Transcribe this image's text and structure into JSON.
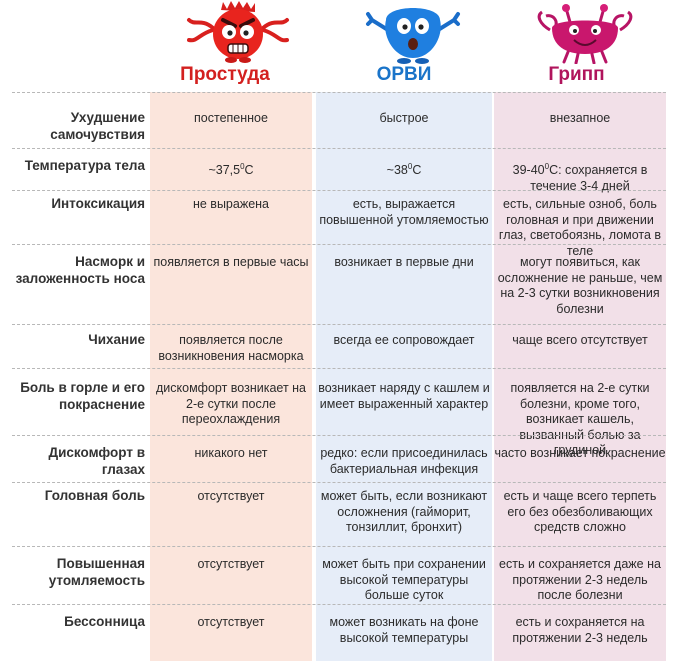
{
  "columns": [
    {
      "title": "Простуда",
      "color": "#d3201f",
      "bg": "#fbe5dc",
      "mascot": "red-angry-monster-icon"
    },
    {
      "title": "ОРВИ",
      "color": "#1a74c9",
      "bg": "#e6edf8",
      "mascot": "blue-sneezing-monster-icon"
    },
    {
      "title": "Грипп",
      "color": "#b0145c",
      "bg": "#f2e0e8",
      "mascot": "pink-crab-monster-icon"
    }
  ],
  "rows": [
    {
      "label": "Ухудшение самочувствия",
      "cells": [
        "постепенное",
        "быстрое",
        "внезапное"
      ]
    },
    {
      "label": "Температура тела",
      "cells": [
        "~37,5°С",
        "~38°С",
        "39-40°С: сохраняется в течение 3-4 дней"
      ]
    },
    {
      "label": "Интоксикация",
      "cells": [
        "не выражена",
        "есть, выражается повышенной утомляемостью",
        "есть, сильные озноб, боль головная и при движении глаз, светобоязнь, ломота в теле"
      ]
    },
    {
      "label": "Насморк и заложенность носа",
      "cells": [
        "появляется в первые часы",
        "возникает в первые дни",
        "могут появиться, как осложнение не раньше, чем на 2-3 сутки возникновения болезни"
      ]
    },
    {
      "label": "Чихание",
      "cells": [
        "появляется после возникновения насморка",
        "всегда ее сопровождает",
        "чаще всего отсутствует"
      ]
    },
    {
      "label": "Боль в горле и его покраснение",
      "cells": [
        "дискомфорт возникает на 2-е сутки после переохлаждения",
        "возникает наряду с кашлем и имеет выраженный характер",
        "появляется на 2-е сутки болезни, кроме того, возникает кашель, вызванный болью за грудиной"
      ]
    },
    {
      "label": "Дискомфорт в глазах",
      "cells": [
        "никакого нет",
        "редко: если присоединилась бактериальная инфекция",
        "часто возникает покраснение"
      ]
    },
    {
      "label": "Головная боль",
      "cells": [
        "отсутствует",
        "может быть, если возникают осложнения (гайморит, тонзиллит, бронхит)",
        "есть и чаще всего терпеть его без обезболивающих средств сложно"
      ]
    },
    {
      "label": "Повышенная утомляемость",
      "cells": [
        "отсутствует",
        "может быть при сохранении высокой температуры больше суток",
        "есть и сохраняется даже на протяжении 2-3 недель после болезни"
      ]
    },
    {
      "label": "Бессонница",
      "cells": [
        "отсутствует",
        "может возникать на фоне высокой температуры",
        "есть и сохраняется на протяжении 2-3 недель"
      ]
    }
  ]
}
